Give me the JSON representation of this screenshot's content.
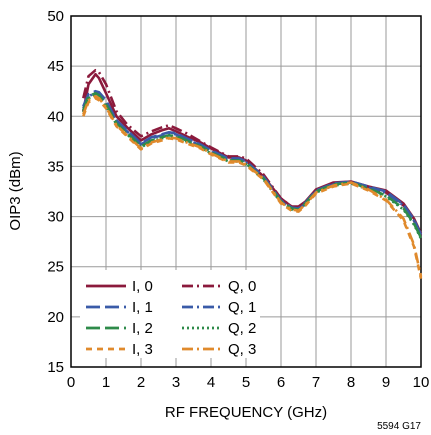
{
  "chart_data": {
    "type": "line",
    "title": "",
    "xlabel": "RF FREQUENCY (GHz)",
    "ylabel": "OIP3 (dBm)",
    "xlim": [
      0,
      10
    ],
    "ylim": [
      15,
      50
    ],
    "xticks": [
      0,
      1,
      2,
      3,
      4,
      5,
      6,
      7,
      8,
      9,
      10
    ],
    "yticks": [
      15,
      20,
      25,
      30,
      35,
      40,
      45,
      50
    ],
    "grid": true,
    "legend_placement": "bottom-left",
    "series": [
      {
        "name": "I, 0",
        "color": "#8b1a3c",
        "dash": "solid",
        "x": [
          0.35,
          0.5,
          0.7,
          0.8,
          1.0,
          1.3,
          1.6,
          2.0,
          2.3,
          2.6,
          2.8,
          3.0,
          3.3,
          3.7,
          4.0,
          4.5,
          4.8,
          5.0,
          5.5,
          6.0,
          6.3,
          6.5,
          6.7,
          7.0,
          7.5,
          8.0,
          8.5,
          9.0,
          9.5,
          9.8,
          10.0
        ],
        "values": [
          40.5,
          43.2,
          44.2,
          43.8,
          42.3,
          40.0,
          38.9,
          37.6,
          38.2,
          38.6,
          38.8,
          38.5,
          38.0,
          37.4,
          36.8,
          35.9,
          35.9,
          35.6,
          34.0,
          31.8,
          31.0,
          31.0,
          31.5,
          32.7,
          33.4,
          33.5,
          33.0,
          32.6,
          31.3,
          29.8,
          28.3
        ]
      },
      {
        "name": "Q, 0",
        "color": "#8b1a3c",
        "dash": "dashdot",
        "x": [
          0.35,
          0.5,
          0.7,
          0.8,
          1.0,
          1.3,
          1.6,
          2.0,
          2.3,
          2.6,
          2.8,
          3.0,
          3.3,
          3.7,
          4.0,
          4.5,
          4.8,
          5.0,
          5.5,
          6.0,
          6.3,
          6.5,
          6.7,
          7.0,
          7.5,
          8.0,
          8.5,
          9.0,
          9.5,
          9.8,
          10.0
        ],
        "values": [
          41.8,
          44.0,
          44.6,
          44.4,
          43.2,
          40.5,
          39.2,
          38.0,
          38.5,
          38.9,
          39.1,
          38.8,
          38.3,
          37.5,
          36.9,
          36.0,
          36.0,
          35.8,
          34.2,
          31.8,
          31.0,
          30.8,
          31.3,
          32.6,
          33.3,
          33.4,
          32.9,
          32.4,
          31.1,
          29.6,
          28.1
        ]
      },
      {
        "name": "I, 1",
        "color": "#3a5ba8",
        "dash": "longdash",
        "x": [
          0.35,
          0.5,
          0.7,
          0.8,
          1.0,
          1.3,
          1.6,
          2.0,
          2.3,
          2.6,
          2.8,
          3.0,
          3.3,
          3.7,
          4.0,
          4.5,
          4.8,
          5.0,
          5.5,
          6.0,
          6.3,
          6.5,
          6.7,
          7.0,
          7.5,
          8.0,
          8.5,
          9.0,
          9.5,
          9.8,
          10.0
        ],
        "values": [
          41.0,
          42.2,
          42.5,
          42.4,
          41.6,
          39.6,
          38.6,
          37.3,
          37.9,
          38.2,
          38.4,
          38.3,
          37.8,
          37.2,
          36.6,
          35.8,
          35.8,
          35.5,
          34.0,
          31.6,
          30.9,
          30.8,
          31.4,
          32.6,
          33.3,
          33.5,
          33.0,
          32.5,
          31.2,
          29.7,
          28.2
        ]
      },
      {
        "name": "Q, 1",
        "color": "#3a5ba8",
        "dash": "dashdot",
        "x": [
          0.35,
          0.5,
          0.7,
          0.8,
          1.0,
          1.3,
          1.6,
          2.0,
          2.3,
          2.6,
          2.8,
          3.0,
          3.3,
          3.7,
          4.0,
          4.5,
          4.8,
          5.0,
          5.5,
          6.0,
          6.3,
          6.5,
          6.7,
          7.0,
          7.5,
          8.0,
          8.5,
          9.0,
          9.5,
          9.8,
          10.0
        ],
        "values": [
          40.8,
          42.0,
          42.3,
          42.2,
          41.4,
          39.5,
          38.5,
          37.2,
          37.8,
          38.1,
          38.3,
          38.2,
          37.7,
          37.1,
          36.5,
          35.7,
          35.7,
          35.4,
          33.9,
          31.5,
          30.8,
          30.7,
          31.3,
          32.5,
          33.2,
          33.4,
          32.9,
          32.4,
          31.1,
          29.6,
          28.1
        ]
      },
      {
        "name": "I, 2",
        "color": "#2e8b4a",
        "dash": "longdash",
        "x": [
          0.35,
          0.5,
          0.7,
          0.8,
          1.0,
          1.3,
          1.6,
          2.0,
          2.3,
          2.6,
          2.8,
          3.0,
          3.3,
          3.7,
          4.0,
          4.5,
          4.8,
          5.0,
          5.5,
          6.0,
          6.3,
          6.5,
          6.7,
          7.0,
          7.5,
          8.0,
          8.5,
          9.0,
          9.5,
          9.8,
          10.0
        ],
        "values": [
          40.6,
          42.0,
          42.3,
          42.1,
          41.2,
          39.3,
          38.3,
          37.0,
          37.6,
          37.9,
          38.1,
          38.0,
          37.6,
          37.0,
          36.4,
          35.6,
          35.6,
          35.3,
          33.8,
          31.5,
          30.8,
          30.7,
          31.3,
          32.5,
          33.2,
          33.4,
          32.8,
          32.1,
          30.8,
          29.3,
          27.9
        ]
      },
      {
        "name": "Q, 2",
        "color": "#2e8b4a",
        "dash": "dotted",
        "x": [
          0.35,
          0.5,
          0.7,
          0.8,
          1.0,
          1.3,
          1.6,
          2.0,
          2.3,
          2.6,
          2.8,
          3.0,
          3.3,
          3.7,
          4.0,
          4.5,
          4.8,
          5.0,
          5.5,
          6.0,
          6.3,
          6.5,
          6.7,
          7.0,
          7.5,
          8.0,
          8.5,
          9.0,
          9.5,
          9.8,
          10.0
        ],
        "values": [
          40.4,
          41.8,
          42.1,
          41.9,
          41.0,
          39.2,
          38.2,
          36.9,
          37.5,
          37.8,
          38.0,
          37.9,
          37.5,
          36.9,
          36.3,
          35.5,
          35.5,
          35.2,
          33.7,
          31.4,
          30.7,
          30.6,
          31.2,
          32.4,
          33.1,
          33.3,
          32.7,
          32.0,
          30.7,
          29.2,
          27.8
        ]
      },
      {
        "name": "I, 3",
        "color": "#e08a2c",
        "dash": "dashed",
        "x": [
          0.35,
          0.5,
          0.7,
          0.8,
          1.0,
          1.3,
          1.6,
          2.0,
          2.3,
          2.6,
          2.8,
          3.0,
          3.3,
          3.7,
          4.0,
          4.5,
          4.8,
          5.0,
          5.5,
          6.0,
          6.3,
          6.5,
          6.7,
          7.0,
          7.5,
          8.0,
          8.5,
          9.0,
          9.5,
          9.8,
          10.0
        ],
        "values": [
          40.0,
          41.4,
          41.8,
          41.6,
          40.8,
          39.0,
          38.0,
          36.7,
          37.3,
          37.6,
          37.8,
          37.7,
          37.3,
          36.8,
          36.2,
          35.4,
          35.4,
          35.1,
          33.7,
          31.3,
          30.6,
          30.5,
          31.1,
          32.3,
          33.0,
          33.3,
          32.6,
          31.6,
          29.6,
          27.0,
          23.8
        ]
      },
      {
        "name": "Q, 3",
        "color": "#e08a2c",
        "dash": "dashdot",
        "x": [
          0.35,
          0.5,
          0.7,
          0.8,
          1.0,
          1.3,
          1.6,
          2.0,
          2.3,
          2.6,
          2.8,
          3.0,
          3.3,
          3.7,
          4.0,
          4.5,
          4.8,
          5.0,
          5.5,
          6.0,
          6.3,
          6.5,
          6.7,
          7.0,
          7.5,
          8.0,
          8.5,
          9.0,
          9.5,
          9.8,
          10.0
        ],
        "values": [
          40.2,
          41.6,
          42.0,
          41.8,
          40.9,
          39.1,
          38.1,
          36.8,
          37.4,
          37.7,
          37.9,
          37.8,
          37.4,
          36.9,
          36.3,
          35.5,
          35.5,
          35.2,
          33.8,
          31.4,
          30.7,
          30.6,
          31.2,
          32.4,
          33.1,
          33.4,
          32.7,
          31.7,
          29.8,
          27.2,
          24.0
        ]
      }
    ],
    "annotation": "5594 G17"
  }
}
